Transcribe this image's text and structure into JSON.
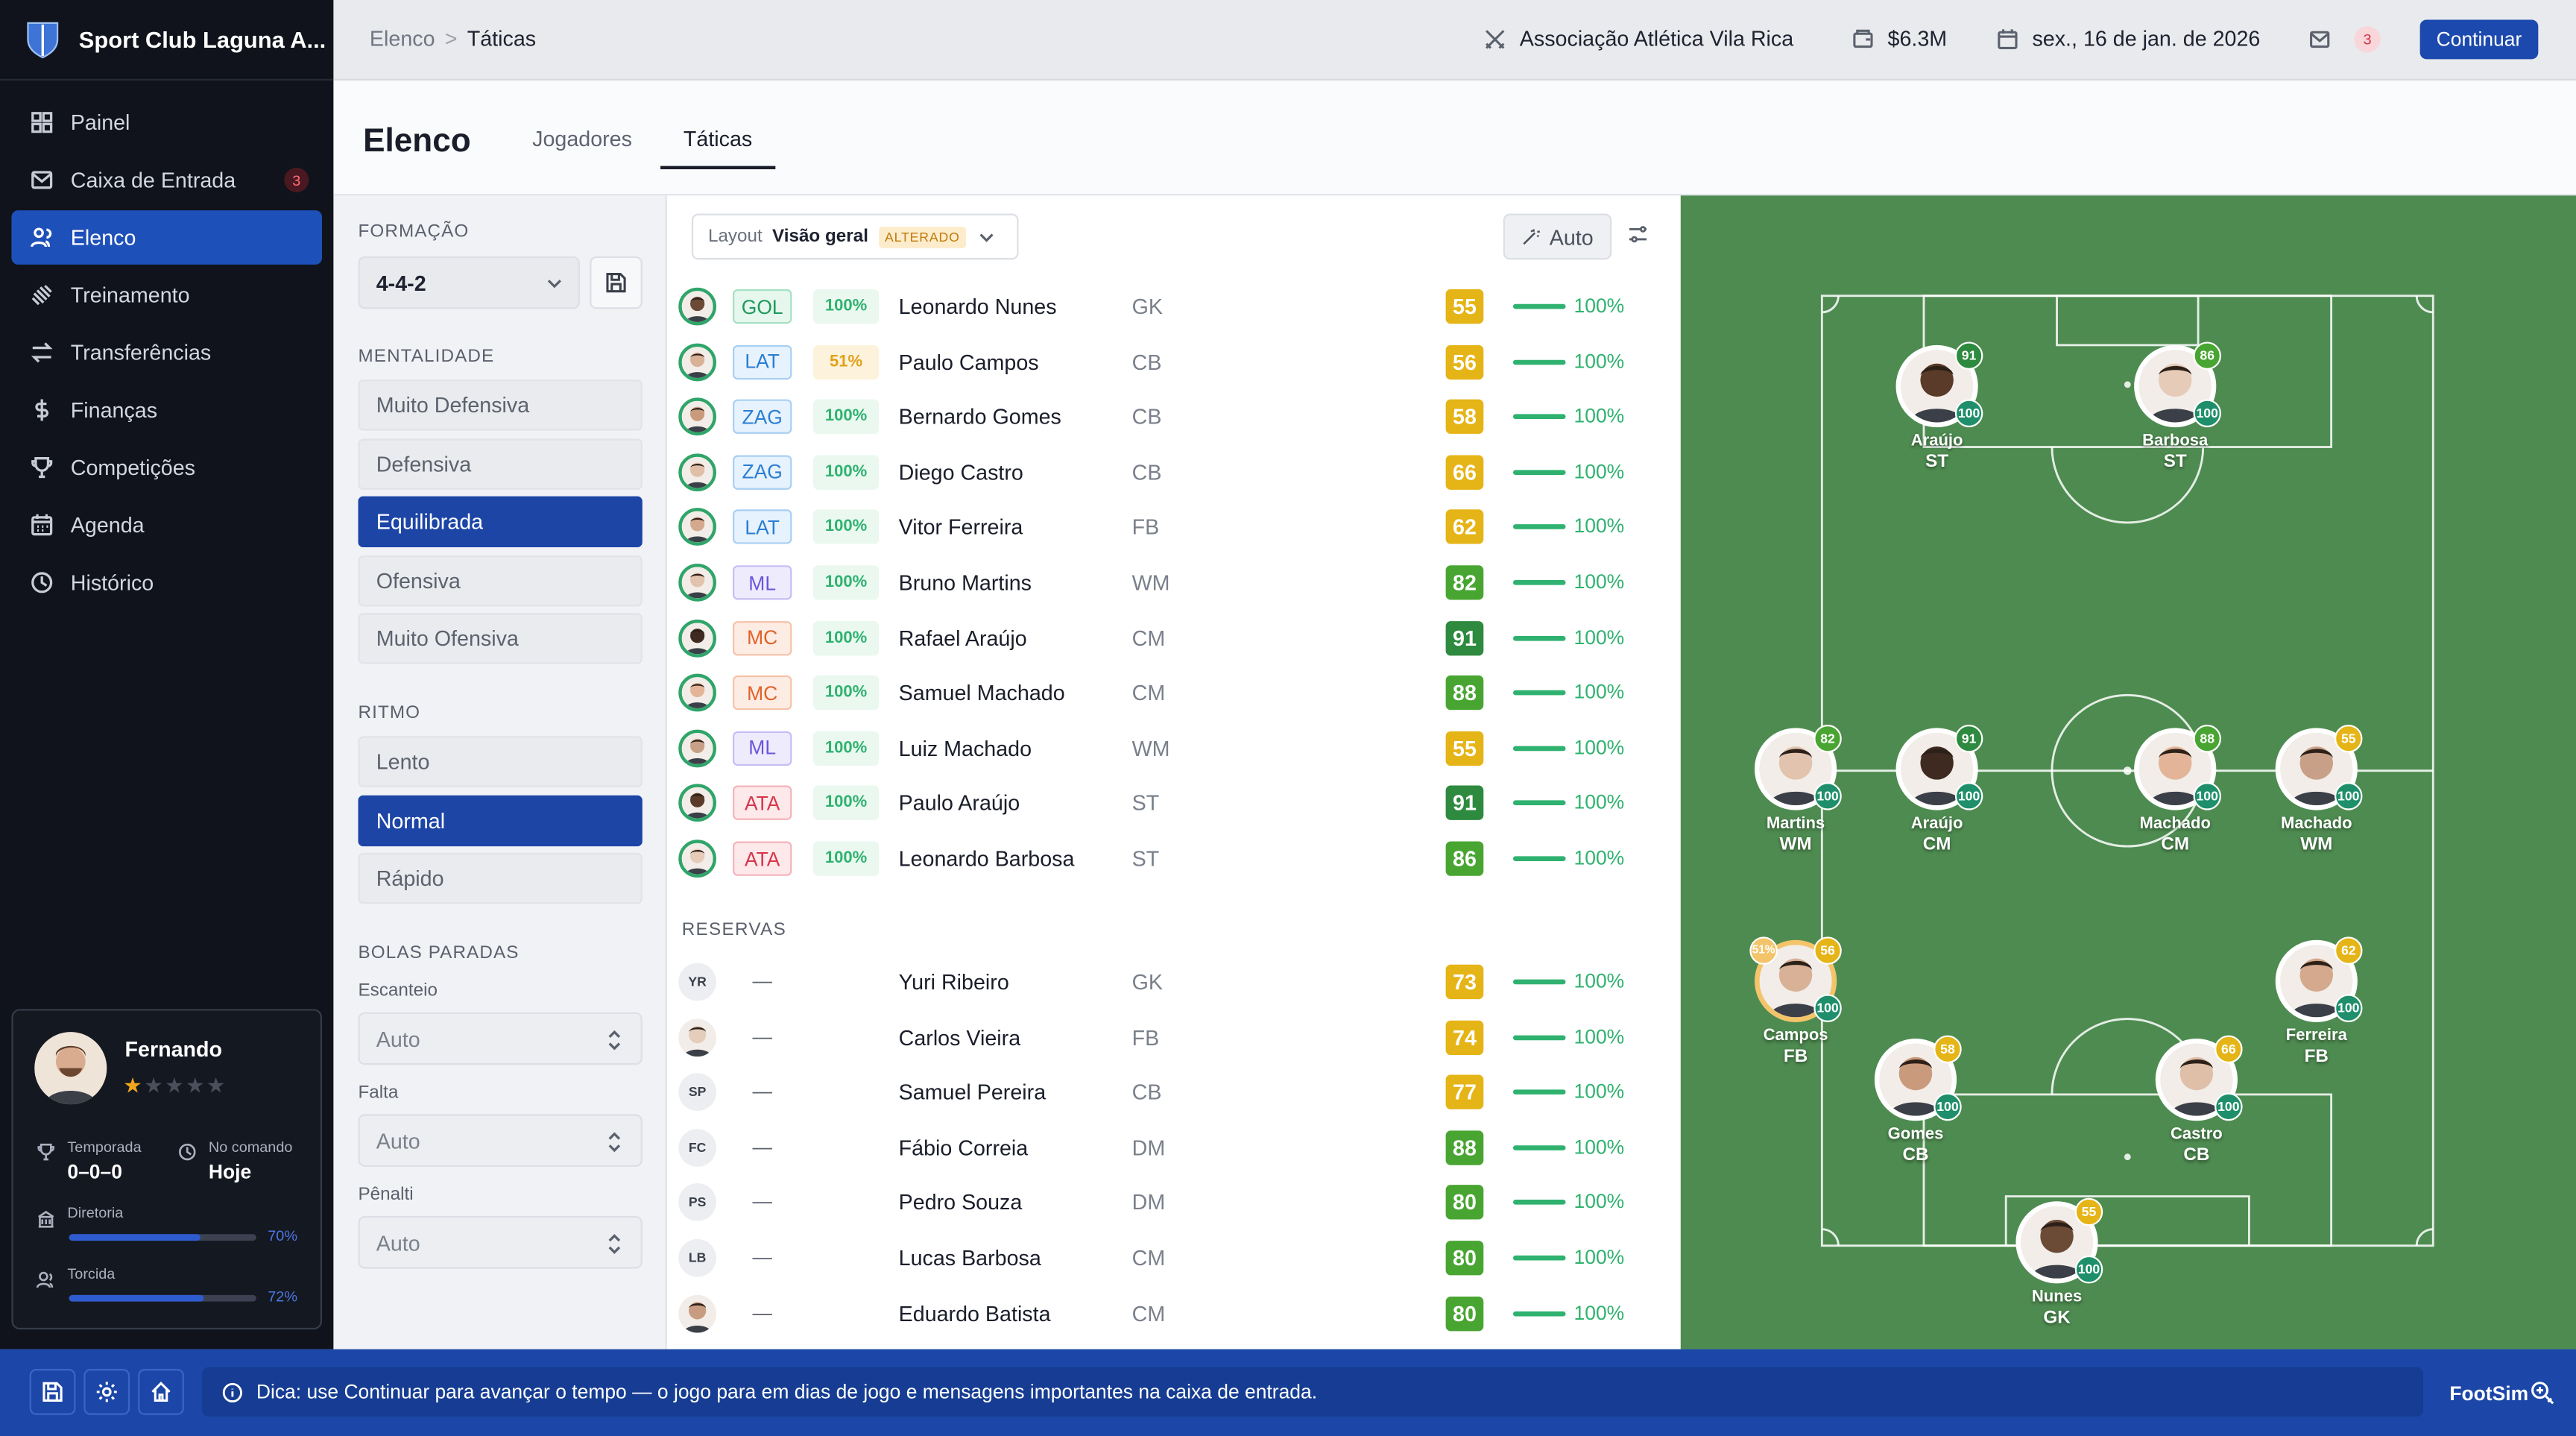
{
  "app": {
    "title": "Sport Club Laguna A..."
  },
  "nav": [
    {
      "label": "Painel",
      "icon": "grid-icon"
    },
    {
      "label": "Caixa de Entrada",
      "icon": "inbox-icon",
      "badge": "3"
    },
    {
      "label": "Elenco",
      "icon": "users-icon",
      "active": true
    },
    {
      "label": "Treinamento",
      "icon": "dumbbell-icon"
    },
    {
      "label": "Transferências",
      "icon": "arrows-icon"
    },
    {
      "label": "Finanças",
      "icon": "dollar-icon"
    },
    {
      "label": "Competições",
      "icon": "trophy-icon"
    },
    {
      "label": "Agenda",
      "icon": "calendar-icon"
    },
    {
      "label": "Histórico",
      "icon": "clock-icon"
    }
  ],
  "manager": {
    "name": "Fernando",
    "stars": 1,
    "stars_max": 5,
    "season_label": "Temporada",
    "season_value": "0–0–0",
    "tenure_label": "No comando",
    "tenure_value": "Hoje",
    "board_label": "Diretoria",
    "board_pct": "70%",
    "fans_label": "Torcida",
    "fans_pct": "72%"
  },
  "topbar": {
    "crumb_parent": "Elenco",
    "crumb_sep": ">",
    "crumb_current": "Táticas",
    "opponent": "Associação Atlética Vila Rica",
    "budget": "$6.3M",
    "date": "sex., 16 de jan. de 2026",
    "mail_count": "3",
    "continue_label": "Continuar"
  },
  "page": {
    "title": "Elenco",
    "tabs": [
      {
        "label": "Jogadores"
      },
      {
        "label": "Táticas",
        "active": true
      }
    ]
  },
  "tactics": {
    "formation_label": "FORMAÇÃO",
    "formation": "4-4-2",
    "mentality_label": "MENTALIDADE",
    "mentality": [
      "Muito Defensiva",
      "Defensiva",
      "Equilibrada",
      "Ofensiva",
      "Muito Ofensiva"
    ],
    "mentality_selected": 2,
    "tempo_label": "RITMO",
    "tempo": [
      "Lento",
      "Normal",
      "Rápido"
    ],
    "tempo_selected": 1,
    "setpieces_label": "BOLAS PARADAS",
    "setpieces": [
      {
        "label": "Escanteio",
        "value": "Auto"
      },
      {
        "label": "Falta",
        "value": "Auto"
      },
      {
        "label": "Pênalti",
        "value": "Auto"
      }
    ]
  },
  "lineup": {
    "layout_label": "Layout",
    "layout_value": "Visão geral",
    "layout_badge": "ALTERADO",
    "auto_label": "Auto",
    "reserves_label": "RESERVAS",
    "colors": {
      "yellow": "#e5b416",
      "green": "#49a532",
      "darkgreen": "#2e8a3e",
      "amber": "#f0a71c"
    },
    "starters": [
      {
        "role": "GOL",
        "cls": "gk",
        "fit": "100%",
        "name": "Leonardo Nunes",
        "pos": "GK",
        "ovr": "55",
        "cond": "100%",
        "skin": "#6b4a36"
      },
      {
        "role": "LAT",
        "cls": "df",
        "fit": "51%",
        "warn": true,
        "name": "Paulo Campos",
        "pos": "CB",
        "ovr": "56",
        "cond": "100%",
        "skin": "#d8b197"
      },
      {
        "role": "ZAG",
        "cls": "df",
        "fit": "100%",
        "name": "Bernardo Gomes",
        "pos": "CB",
        "ovr": "58",
        "cond": "100%",
        "skin": "#c99a7c"
      },
      {
        "role": "ZAG",
        "cls": "df",
        "fit": "100%",
        "name": "Diego Castro",
        "pos": "CB",
        "ovr": "66",
        "cond": "100%",
        "skin": "#e0bfa8"
      },
      {
        "role": "LAT",
        "cls": "df",
        "fit": "100%",
        "name": "Vitor Ferreira",
        "pos": "FB",
        "ovr": "62",
        "cond": "100%",
        "skin": "#d4a98d"
      },
      {
        "role": "ML",
        "cls": "mf",
        "fit": "100%",
        "name": "Bruno Martins",
        "pos": "WM",
        "ovr": "82",
        "cond": "100%",
        "skin": "#e2c3ad"
      },
      {
        "role": "MC",
        "cls": "cm",
        "fit": "100%",
        "name": "Rafael Araújo",
        "pos": "CM",
        "ovr": "91",
        "cond": "100%",
        "skin": "#3e2a20"
      },
      {
        "role": "MC",
        "cls": "cm",
        "fit": "100%",
        "name": "Samuel Machado",
        "pos": "CM",
        "ovr": "88",
        "cond": "100%",
        "skin": "#e3b497"
      },
      {
        "role": "ML",
        "cls": "mf",
        "fit": "100%",
        "name": "Luiz Machado",
        "pos": "WM",
        "ovr": "55",
        "cond": "100%",
        "skin": "#c8a088"
      },
      {
        "role": "ATA",
        "cls": "at",
        "fit": "100%",
        "name": "Paulo Araújo",
        "pos": "ST",
        "ovr": "91",
        "cond": "100%",
        "skin": "#5a3a28"
      },
      {
        "role": "ATA",
        "cls": "at",
        "fit": "100%",
        "name": "Leonardo Barbosa",
        "pos": "ST",
        "ovr": "86",
        "cond": "100%",
        "skin": "#e6cbb9"
      }
    ],
    "reserves": [
      {
        "initials": "YR",
        "dash": "—",
        "name": "Yuri Ribeiro",
        "pos": "GK",
        "ovr": "73",
        "cond": "100%"
      },
      {
        "initials": "",
        "photo": true,
        "dash": "—",
        "name": "Carlos Vieira",
        "pos": "FB",
        "ovr": "74",
        "cond": "100%",
        "skin": "#e5cdbb"
      },
      {
        "initials": "SP",
        "dash": "—",
        "name": "Samuel Pereira",
        "pos": "CB",
        "ovr": "77",
        "cond": "100%"
      },
      {
        "initials": "FC",
        "dash": "—",
        "name": "Fábio Correia",
        "pos": "DM",
        "ovr": "88",
        "cond": "100%"
      },
      {
        "initials": "PS",
        "dash": "—",
        "name": "Pedro Souza",
        "pos": "DM",
        "ovr": "80",
        "cond": "100%"
      },
      {
        "initials": "LB",
        "dash": "—",
        "name": "Lucas Barbosa",
        "pos": "CM",
        "ovr": "80",
        "cond": "100%"
      },
      {
        "initials": "",
        "photo": true,
        "dash": "—",
        "name": "Eduardo Batista",
        "pos": "CM",
        "ovr": "80",
        "cond": "100%",
        "skin": "#c89c80"
      }
    ]
  },
  "pitch": {
    "tokens": [
      {
        "name": "Araújo",
        "pos": "ST",
        "ovr": "91",
        "cond": "100",
        "skin": "#5a3a28"
      },
      {
        "name": "Barbosa",
        "pos": "ST",
        "ovr": "86",
        "cond": "100",
        "skin": "#e6cbb9"
      },
      {
        "name": "Martins",
        "pos": "WM",
        "ovr": "82",
        "cond": "100",
        "skin": "#e2c3ad"
      },
      {
        "name": "Araújo",
        "pos": "CM",
        "ovr": "91",
        "cond": "100",
        "skin": "#3e2a20"
      },
      {
        "name": "Machado",
        "pos": "CM",
        "ovr": "88",
        "cond": "100",
        "skin": "#e3b497"
      },
      {
        "name": "Machado",
        "pos": "WM",
        "ovr": "55",
        "cond": "100",
        "skin": "#c8a088"
      },
      {
        "name": "Campos",
        "pos": "FB",
        "ovr": "56",
        "cond": "100",
        "fit": "51%",
        "skin": "#d8b197"
      },
      {
        "name": "Ferreira",
        "pos": "FB",
        "ovr": "62",
        "cond": "100",
        "skin": "#d4a98d"
      },
      {
        "name": "Gomes",
        "pos": "CB",
        "ovr": "58",
        "cond": "100",
        "skin": "#c99a7c"
      },
      {
        "name": "Castro",
        "pos": "CB",
        "ovr": "66",
        "cond": "100",
        "skin": "#e0bfa8"
      },
      {
        "name": "Nunes",
        "pos": "GK",
        "ovr": "55",
        "cond": "100",
        "skin": "#6b4a36"
      }
    ]
  },
  "footer": {
    "tip": "Dica: use Continuar para avançar o tempo — o jogo para em dias de jogo e mensagens importantes na caixa de entrada.",
    "brand": "FootSim"
  }
}
